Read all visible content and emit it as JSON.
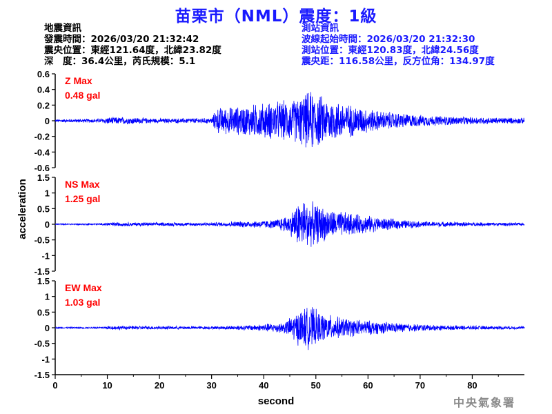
{
  "title": "苗栗市（NML）震度：1級",
  "quake_info": {
    "heading": "地震資訊",
    "time": "發震時間：2026/03/20 21:32:42",
    "location": "震央位置：東經121.64度，北緯23.82度",
    "depth_mag": "深　度：36.4公里，芮氏規模：5.1"
  },
  "station_info": {
    "heading": "測站資訊",
    "wave_start": "波線起始時間：2026/03/20 21:32:30",
    "location": "測站位置：東經120.83度，北緯24.56度",
    "distance": "震央距：116.58公里，反方位角：134.97度"
  },
  "footer": "中央氣象署",
  "chart_data": {
    "type": "line",
    "xlabel": "second",
    "ylabel": "acceleration",
    "xlim": [
      0,
      90
    ],
    "xticks": [
      0,
      10,
      20,
      30,
      40,
      50,
      60,
      70,
      80
    ],
    "series_color": "#0000ff",
    "label_color": "#ff0000",
    "panels": [
      {
        "name": "Z",
        "label_line1": "Z Max",
        "label_line2": "0.48 gal",
        "ylim": [
          -0.6,
          0.6
        ],
        "yticks": [
          -0.6,
          -0.4,
          -0.2,
          0,
          0.2,
          0.4,
          0.6
        ],
        "ytick_labels": [
          "-0.6",
          "-0.4",
          "-0.2",
          "0",
          "0.2",
          "0.4",
          "0.6"
        ],
        "max_abs": 0.48,
        "envelope": [
          [
            0,
            0.02
          ],
          [
            9,
            0.03
          ],
          [
            10,
            0.05
          ],
          [
            14,
            0.05
          ],
          [
            20,
            0.03
          ],
          [
            30,
            0.04
          ],
          [
            31,
            0.18
          ],
          [
            35,
            0.2
          ],
          [
            40,
            0.25
          ],
          [
            46,
            0.3
          ],
          [
            49,
            0.42
          ],
          [
            52,
            0.32
          ],
          [
            57,
            0.22
          ],
          [
            62,
            0.14
          ],
          [
            70,
            0.08
          ],
          [
            80,
            0.05
          ],
          [
            90,
            0.04
          ]
        ]
      },
      {
        "name": "NS",
        "label_line1": "NS Max",
        "label_line2": "1.25 gal",
        "ylim": [
          -1.5,
          1.5
        ],
        "yticks": [
          -1.5,
          -1,
          -0.5,
          0,
          0.5,
          1,
          1.5
        ],
        "ytick_labels": [
          "-1.5",
          "-1",
          "-0.5",
          "0",
          "0.5",
          "1",
          "1.5"
        ],
        "max_abs": 1.25,
        "envelope": [
          [
            0,
            0.02
          ],
          [
            9,
            0.03
          ],
          [
            10,
            0.07
          ],
          [
            20,
            0.06
          ],
          [
            30,
            0.06
          ],
          [
            35,
            0.1
          ],
          [
            42,
            0.15
          ],
          [
            45,
            0.35
          ],
          [
            47,
            0.9
          ],
          [
            50,
            0.7
          ],
          [
            53,
            0.5
          ],
          [
            58,
            0.35
          ],
          [
            63,
            0.22
          ],
          [
            70,
            0.1
          ],
          [
            80,
            0.07
          ],
          [
            90,
            0.05
          ]
        ]
      },
      {
        "name": "EW",
        "label_line1": "EW Max",
        "label_line2": "1.03 gal",
        "ylim": [
          -1.5,
          1.5
        ],
        "yticks": [
          -1.5,
          -1,
          -0.5,
          0,
          0.5,
          1,
          1.5
        ],
        "ytick_labels": [
          "-1.5",
          "-1",
          "-0.5",
          "0",
          "0.5",
          "1",
          "1.5"
        ],
        "max_abs": 1.03,
        "envelope": [
          [
            0,
            0.02
          ],
          [
            9,
            0.03
          ],
          [
            10,
            0.07
          ],
          [
            20,
            0.06
          ],
          [
            30,
            0.05
          ],
          [
            38,
            0.1
          ],
          [
            44,
            0.2
          ],
          [
            47,
            0.65
          ],
          [
            49,
            0.75
          ],
          [
            51,
            0.5
          ],
          [
            55,
            0.35
          ],
          [
            60,
            0.25
          ],
          [
            67,
            0.15
          ],
          [
            75,
            0.08
          ],
          [
            85,
            0.06
          ],
          [
            90,
            0.05
          ]
        ]
      }
    ]
  }
}
